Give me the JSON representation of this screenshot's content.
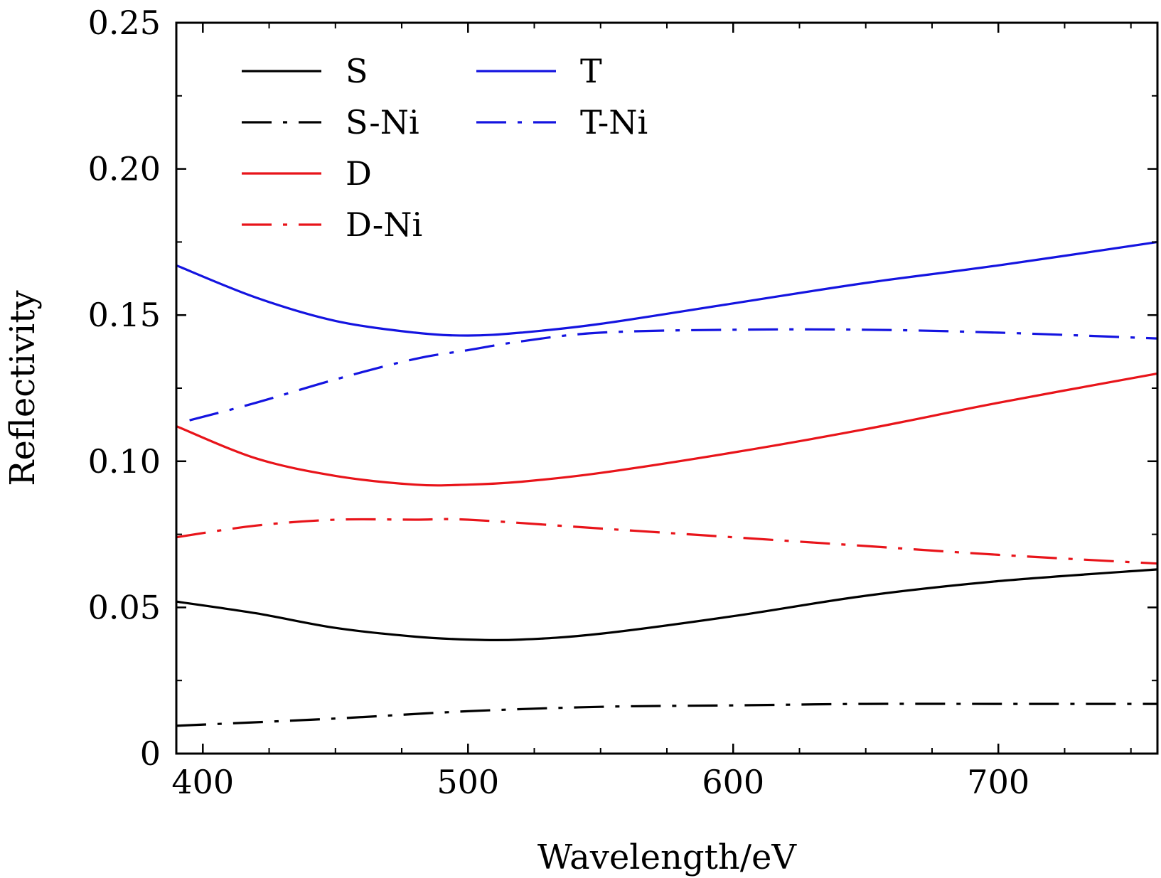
{
  "chart_data": {
    "type": "line",
    "title": "",
    "xlabel": "Wavelength/eV",
    "ylabel": "Reflectivity",
    "xlim": [
      390,
      760
    ],
    "ylim": [
      0,
      0.25
    ],
    "x_ticks": [
      400,
      500,
      600,
      700
    ],
    "x_tick_labels": [
      "400",
      "500",
      "600",
      "700"
    ],
    "x_minor_step": 25,
    "y_ticks": [
      0,
      0.05,
      0.1,
      0.15,
      0.2,
      0.25
    ],
    "y_tick_labels": [
      "0",
      "0.05",
      "0.10",
      "0.15",
      "0.20",
      "0.25"
    ],
    "y_minor_step": 0.025,
    "grid": false,
    "legend": "top-left",
    "series": [
      {
        "name": "S",
        "color": "#000000",
        "style": "solid",
        "x": [
          390,
          420,
          450,
          480,
          500,
          520,
          550,
          600,
          650,
          700,
          760
        ],
        "y": [
          0.052,
          0.048,
          0.043,
          0.04,
          0.039,
          0.039,
          0.041,
          0.047,
          0.054,
          0.059,
          0.063
        ]
      },
      {
        "name": "S-Ni",
        "color": "#000000",
        "style": "dashdot",
        "x": [
          390,
          450,
          500,
          550,
          600,
          650,
          700,
          760
        ],
        "y": [
          0.0095,
          0.012,
          0.0145,
          0.016,
          0.0165,
          0.017,
          0.017,
          0.017
        ]
      },
      {
        "name": "D",
        "color": "#e8141a",
        "style": "solid",
        "x": [
          390,
          420,
          450,
          480,
          500,
          520,
          550,
          600,
          650,
          700,
          760
        ],
        "y": [
          0.112,
          0.101,
          0.095,
          0.092,
          0.092,
          0.093,
          0.096,
          0.103,
          0.111,
          0.12,
          0.13
        ]
      },
      {
        "name": "D-Ni",
        "color": "#e8141a",
        "style": "dashdot",
        "x": [
          390,
          420,
          450,
          480,
          500,
          550,
          600,
          650,
          700,
          760
        ],
        "y": [
          0.074,
          0.078,
          0.08,
          0.08,
          0.08,
          0.077,
          0.074,
          0.071,
          0.068,
          0.065
        ]
      },
      {
        "name": "T",
        "color": "#1414e0",
        "style": "solid",
        "x": [
          390,
          420,
          450,
          480,
          500,
          520,
          550,
          600,
          650,
          700,
          760
        ],
        "y": [
          0.167,
          0.156,
          0.148,
          0.144,
          0.143,
          0.144,
          0.147,
          0.154,
          0.161,
          0.167,
          0.175
        ]
      },
      {
        "name": "T-Ni",
        "color": "#1414e0",
        "style": "dashdot",
        "x": [
          395,
          420,
          450,
          480,
          500,
          520,
          550,
          600,
          650,
          700,
          760
        ],
        "y": [
          0.114,
          0.12,
          0.128,
          0.135,
          0.138,
          0.141,
          0.144,
          0.145,
          0.145,
          0.144,
          0.142
        ]
      }
    ]
  }
}
